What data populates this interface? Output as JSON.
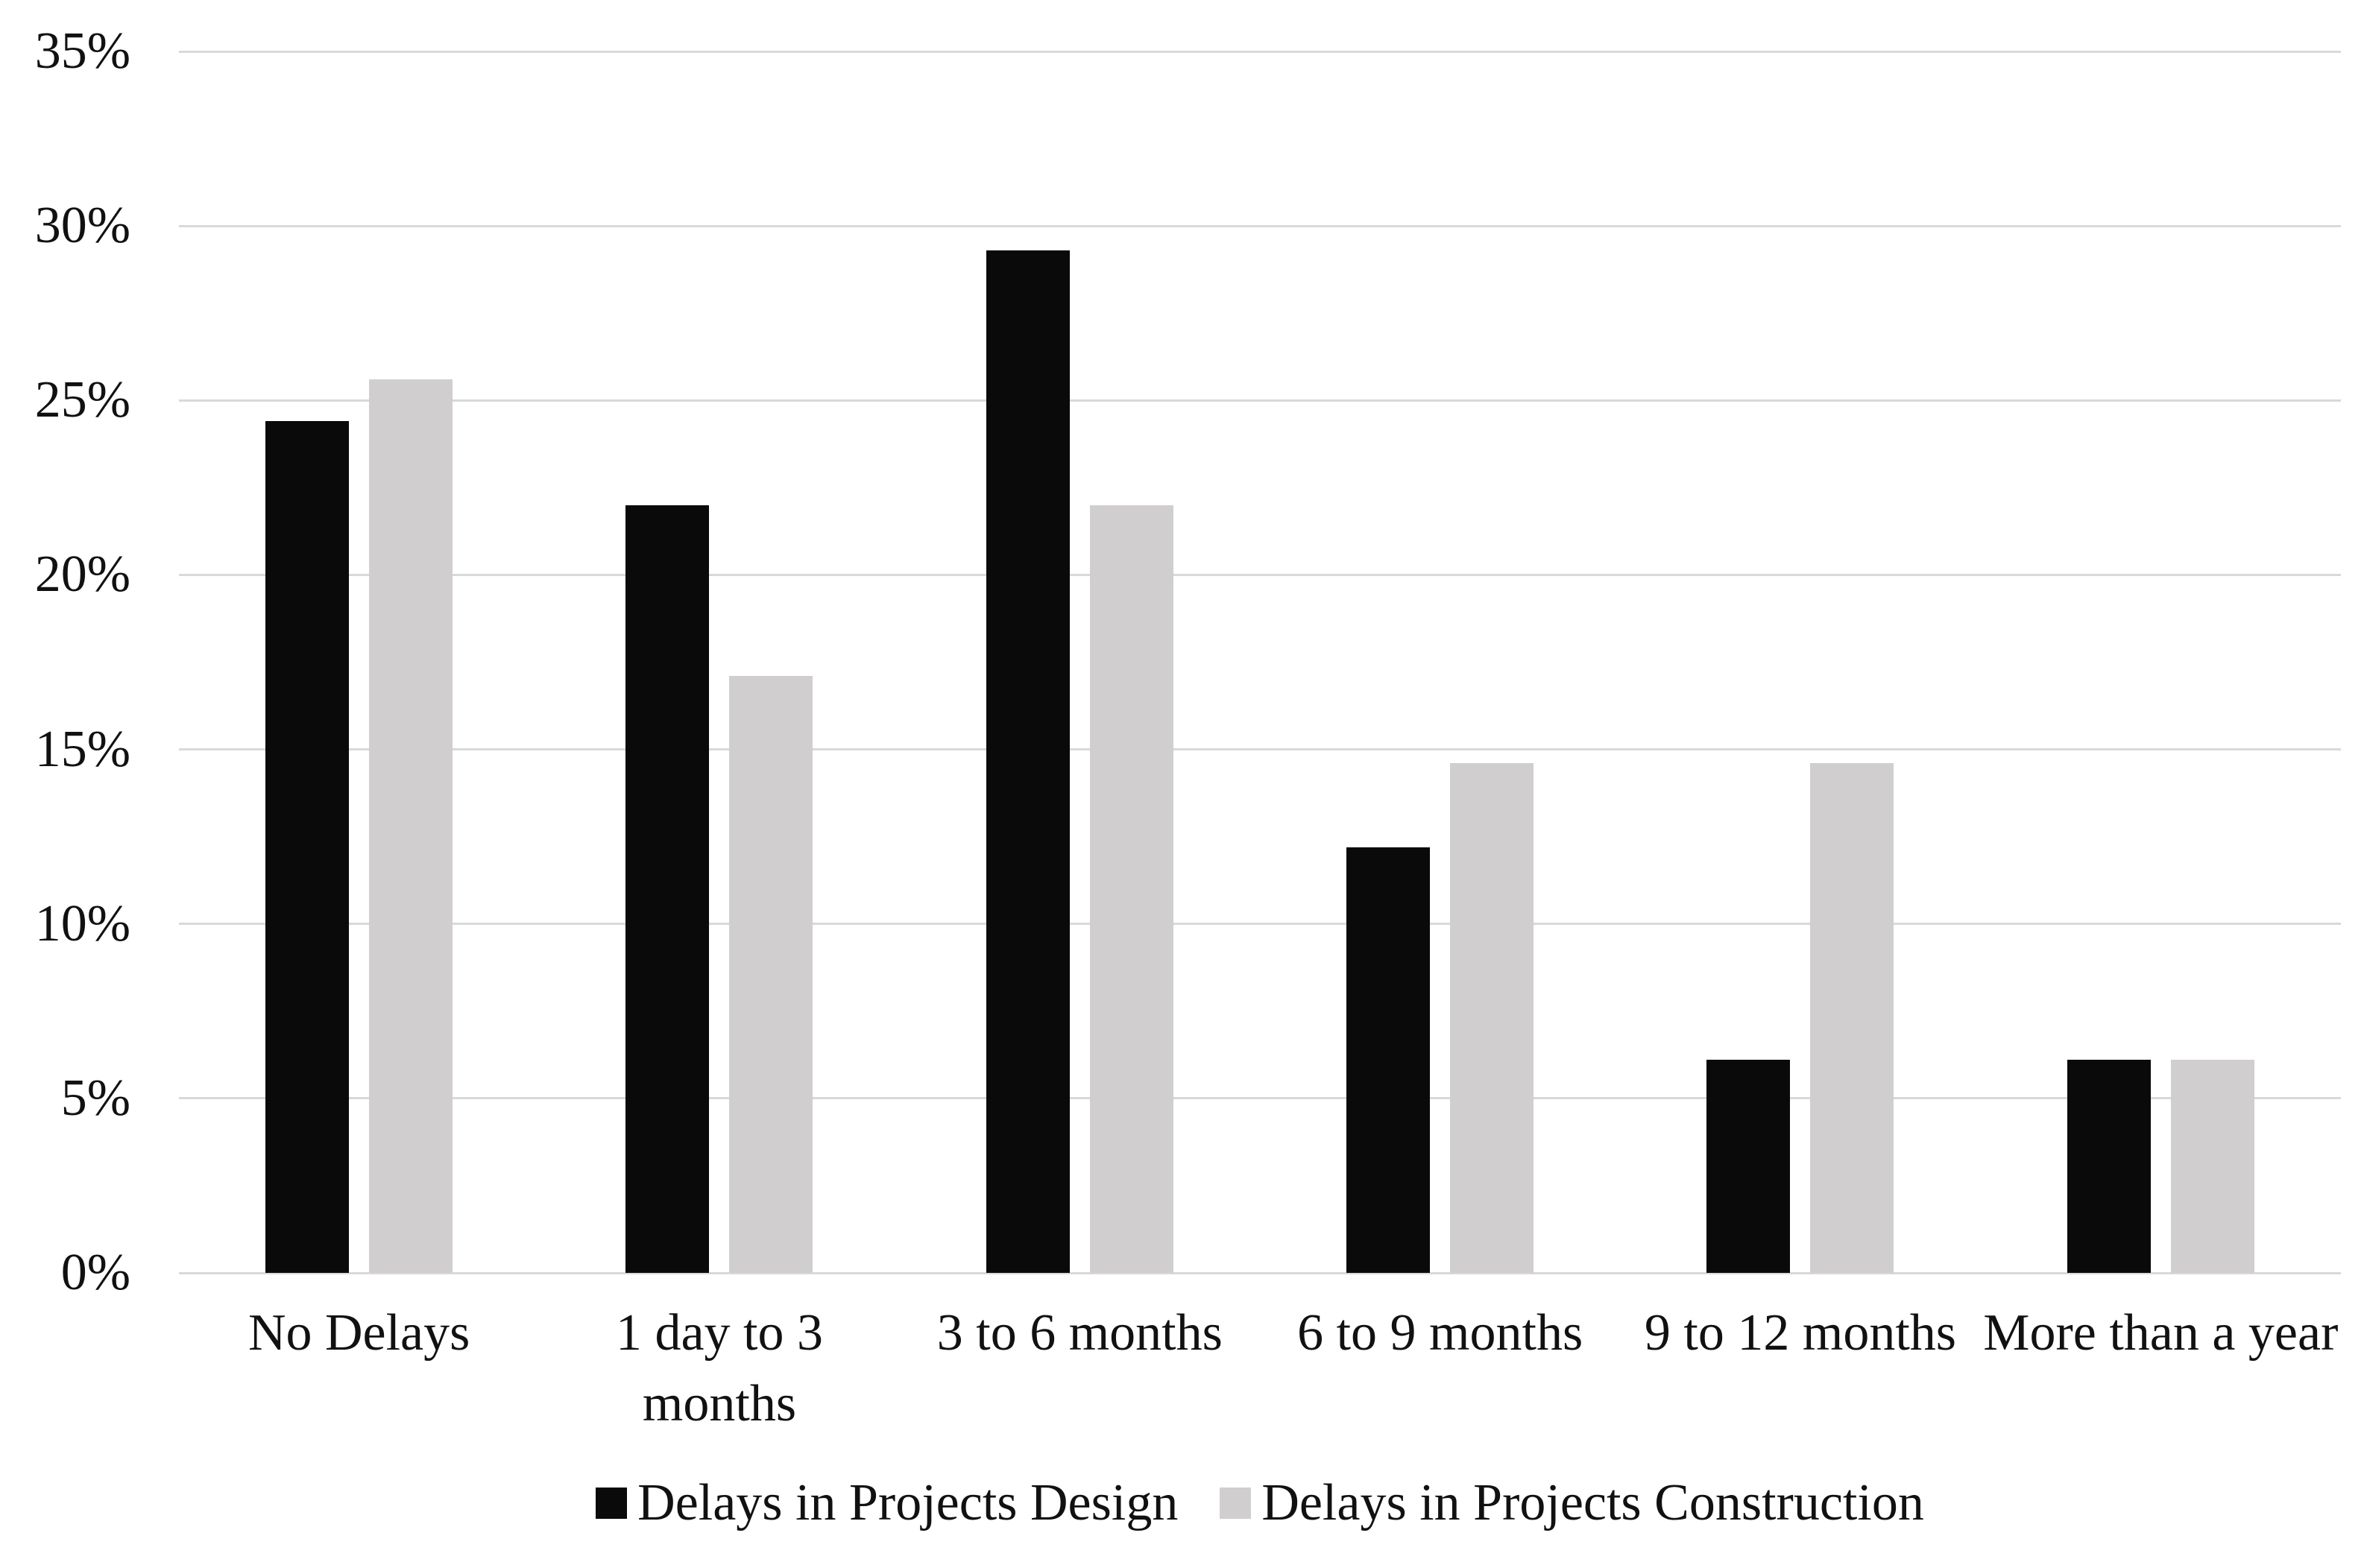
{
  "chart_data": {
    "type": "bar",
    "title": "",
    "categories": [
      "No Delays",
      "1 day to 3 months",
      "3 to 6 months",
      "6 to 9 months",
      "9 to 12 months",
      "More than a year"
    ],
    "series": [
      {
        "name": "Delays in Projects Design",
        "color": "#0a0a0a",
        "values": [
          24.4,
          22.0,
          29.3,
          12.2,
          6.1,
          6.1
        ]
      },
      {
        "name": "Delays in Projects Construction",
        "color": "#d1cecf",
        "values": [
          25.6,
          17.1,
          22.0,
          14.6,
          14.6,
          6.1
        ]
      }
    ],
    "y_axis": {
      "min": 0,
      "max": 35,
      "step": 5,
      "tick_labels": [
        "35%",
        "30%",
        "25%",
        "20%",
        "15%",
        "10%",
        "5%",
        "0%"
      ],
      "format": "percent"
    },
    "xlabel": "",
    "ylabel": "",
    "grid": true,
    "gridline_color": "#d9d9d9",
    "axis_line_color": "#d9d9d9",
    "legend_position": "bottom",
    "background_color": "#ffffff",
    "text_color": "#111111"
  }
}
